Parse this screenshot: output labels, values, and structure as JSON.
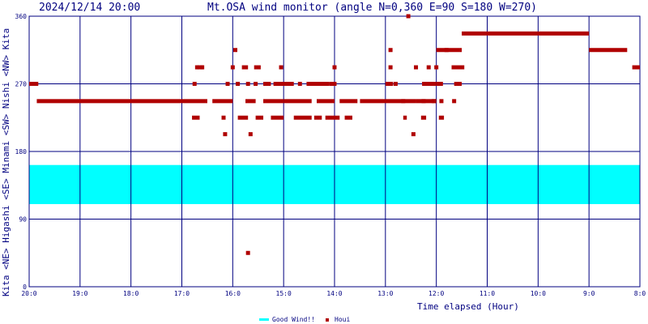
{
  "header": {
    "timestamp": "2024/12/14 20:00",
    "title": "Mt.OSA wind monitor (angle N=0,360 E=90 S=180 W=270)"
  },
  "chart_data": {
    "type": "scatter",
    "xlabel": "Time elapsed (Hour)",
    "ylabel_segments": [
      "Kita",
      "<NE>",
      "Higashi",
      "<SE>",
      "Minami",
      "<SW>",
      "Nishi",
      "<NW>",
      "Kita"
    ],
    "x_unit": "hours elapsed since 20:00",
    "xlim": [
      0,
      12
    ],
    "ylim": [
      0,
      360
    ],
    "x_ticks": [
      {
        "x": 0,
        "label": "20:0"
      },
      {
        "x": 1,
        "label": "19:0"
      },
      {
        "x": 2,
        "label": "18:0"
      },
      {
        "x": 3,
        "label": "17:0"
      },
      {
        "x": 4,
        "label": "16:0"
      },
      {
        "x": 5,
        "label": "15:0"
      },
      {
        "x": 6,
        "label": "14:0"
      },
      {
        "x": 7,
        "label": "13:0"
      },
      {
        "x": 8,
        "label": "12:0"
      },
      {
        "x": 9,
        "label": "11:0"
      },
      {
        "x": 10,
        "label": "10:0"
      },
      {
        "x": 11,
        "label": "9:0"
      },
      {
        "x": 12,
        "label": "8:0"
      }
    ],
    "y_ticks": [
      {
        "y": 0,
        "label": "0"
      },
      {
        "y": 90,
        "label": "90"
      },
      {
        "y": 180,
        "label": "180"
      },
      {
        "y": 270,
        "label": "270"
      },
      {
        "y": 360,
        "label": "360"
      }
    ],
    "grid": true,
    "legend_position": "bottom-center",
    "good_wind_band": {
      "name": "Good Wind!!",
      "from": 110,
      "to": 162,
      "color": "#00ffff"
    },
    "series": [
      {
        "name": "Houi",
        "color": "#b00000",
        "segments": [
          {
            "x_start": 0.0,
            "x_end": 0.18,
            "y": 270
          },
          {
            "x_start": 0.15,
            "x_end": 3.5,
            "y": 247
          },
          {
            "x_start": 3.6,
            "x_end": 4.0,
            "y": 247
          },
          {
            "x_start": 4.25,
            "x_end": 4.45,
            "y": 247
          },
          {
            "x_start": 4.6,
            "x_end": 5.0,
            "y": 247
          },
          {
            "x_start": 5.0,
            "x_end": 5.55,
            "y": 247
          },
          {
            "x_start": 5.65,
            "x_end": 6.0,
            "y": 247
          },
          {
            "x_start": 6.1,
            "x_end": 6.45,
            "y": 247
          },
          {
            "x_start": 6.5,
            "x_end": 7.6,
            "y": 247
          },
          {
            "x_start": 7.6,
            "x_end": 8.0,
            "y": 247
          },
          {
            "x_start": 8.5,
            "x_end": 11.0,
            "y": 337
          },
          {
            "x_start": 11.0,
            "x_end": 11.75,
            "y": 315
          },
          {
            "x_start": 11.85,
            "x_end": 12.0,
            "y": 292
          },
          {
            "x_start": 3.2,
            "x_end": 3.35,
            "y": 225
          },
          {
            "x_start": 4.1,
            "x_end": 4.3,
            "y": 225
          },
          {
            "x_start": 4.45,
            "x_end": 4.6,
            "y": 225
          },
          {
            "x_start": 4.75,
            "x_end": 5.0,
            "y": 225
          },
          {
            "x_start": 5.2,
            "x_end": 5.55,
            "y": 225
          },
          {
            "x_start": 5.6,
            "x_end": 5.75,
            "y": 225
          },
          {
            "x_start": 5.82,
            "x_end": 6.1,
            "y": 225
          },
          {
            "x_start": 6.2,
            "x_end": 6.35,
            "y": 225
          },
          {
            "x_start": 7.35,
            "x_end": 7.42,
            "y": 225
          },
          {
            "x_start": 7.7,
            "x_end": 7.8,
            "y": 225
          },
          {
            "x_start": 8.05,
            "x_end": 8.15,
            "y": 225
          },
          {
            "x_start": 3.3,
            "x_end": 3.42,
            "y": 292
          },
          {
            "x_start": 4.18,
            "x_end": 4.3,
            "y": 292
          },
          {
            "x_start": 4.42,
            "x_end": 4.55,
            "y": 292
          },
          {
            "x_start": 7.0,
            "x_end": 7.15,
            "y": 270
          },
          {
            "x_start": 7.72,
            "x_end": 8.0,
            "y": 270
          },
          {
            "x_start": 4.6,
            "x_end": 4.75,
            "y": 270
          },
          {
            "x_start": 4.8,
            "x_end": 5.2,
            "y": 270
          },
          {
            "x_start": 5.45,
            "x_end": 5.9,
            "y": 270
          },
          {
            "x_start": 5.9,
            "x_end": 6.0,
            "y": 270
          },
          {
            "x_start": 8.0,
            "x_end": 8.13,
            "y": 270
          },
          {
            "x_start": 8.35,
            "x_end": 8.5,
            "y": 270
          },
          {
            "x_start": 8.0,
            "x_end": 8.5,
            "y": 315
          },
          {
            "x_start": 8.3,
            "x_end": 8.55,
            "y": 292
          }
        ],
        "points": [
          {
            "x": 3.25,
            "y": 270
          },
          {
            "x": 3.3,
            "y": 292
          },
          {
            "x": 3.4,
            "y": 292
          },
          {
            "x": 3.82,
            "y": 225
          },
          {
            "x": 3.9,
            "y": 270
          },
          {
            "x": 3.85,
            "y": 203
          },
          {
            "x": 4.0,
            "y": 292
          },
          {
            "x": 4.05,
            "y": 315
          },
          {
            "x": 4.1,
            "y": 270
          },
          {
            "x": 4.3,
            "y": 270
          },
          {
            "x": 4.3,
            "y": 45
          },
          {
            "x": 4.35,
            "y": 203
          },
          {
            "x": 4.45,
            "y": 270
          },
          {
            "x": 4.85,
            "y": 270
          },
          {
            "x": 4.95,
            "y": 292
          },
          {
            "x": 5.15,
            "y": 270
          },
          {
            "x": 5.32,
            "y": 270
          },
          {
            "x": 5.55,
            "y": 270
          },
          {
            "x": 5.75,
            "y": 270
          },
          {
            "x": 6.0,
            "y": 270
          },
          {
            "x": 6.0,
            "y": 292
          },
          {
            "x": 7.1,
            "y": 292
          },
          {
            "x": 7.1,
            "y": 315
          },
          {
            "x": 7.2,
            "y": 270
          },
          {
            "x": 7.35,
            "y": 247
          },
          {
            "x": 7.6,
            "y": 292
          },
          {
            "x": 7.75,
            "y": 247
          },
          {
            "x": 7.85,
            "y": 292
          },
          {
            "x": 7.95,
            "y": 247
          },
          {
            "x": 8.0,
            "y": 292
          },
          {
            "x": 8.1,
            "y": 247
          },
          {
            "x": 7.45,
            "y": 360
          },
          {
            "x": 7.55,
            "y": 203
          },
          {
            "x": 8.2,
            "y": 315
          },
          {
            "x": 8.35,
            "y": 247
          }
        ]
      }
    ]
  },
  "legend": {
    "good_wind_label": "Good Wind!!",
    "houi_label": "Houi"
  }
}
